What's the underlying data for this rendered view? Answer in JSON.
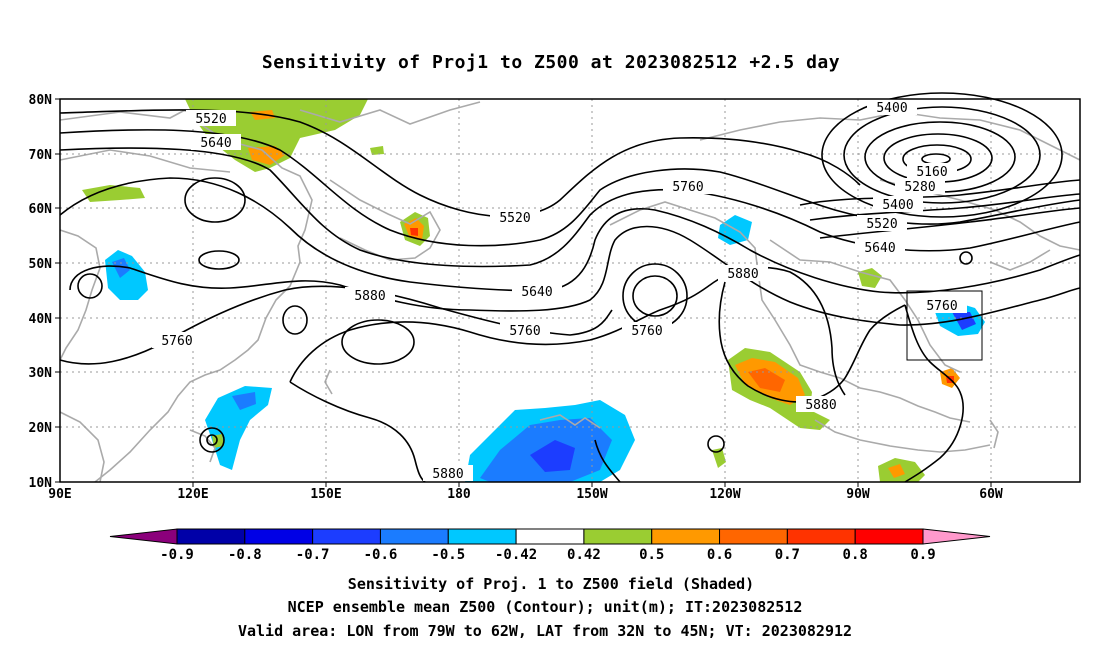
{
  "title": "Sensitivity of Proj1 to Z500 at 2023082512 +2.5 day",
  "map": {
    "lat_labels": [
      "80N",
      "70N",
      "60N",
      "50N",
      "40N",
      "30N",
      "20N",
      "10N"
    ],
    "lon_labels": [
      "90E",
      "120E",
      "150E",
      "180",
      "150W",
      "120W",
      "90W",
      "60W"
    ],
    "contour_labels": [
      {
        "text": "5520"
      },
      {
        "text": "5640"
      },
      {
        "text": "5520"
      },
      {
        "text": "5760"
      },
      {
        "text": "5400"
      },
      {
        "text": "5160"
      },
      {
        "text": "5280"
      },
      {
        "text": "5400"
      },
      {
        "text": "5520"
      },
      {
        "text": "5640"
      },
      {
        "text": "5880"
      },
      {
        "text": "5640"
      },
      {
        "text": "5760"
      },
      {
        "text": "5760"
      },
      {
        "text": "5880"
      },
      {
        "text": "5760"
      },
      {
        "text": "5760"
      },
      {
        "text": "5880"
      },
      {
        "text": "5880"
      }
    ],
    "valid_area": {
      "lon_min": -79,
      "lon_max": -62,
      "lat_min": 32,
      "lat_max": 45
    }
  },
  "colorbar": {
    "labels": [
      "-0.9",
      "-0.8",
      "-0.7",
      "-0.6",
      "-0.5",
      "-0.42",
      "0.42",
      "0.5",
      "0.6",
      "0.7",
      "0.8",
      "0.9"
    ],
    "colors": [
      "#8b007b",
      "#0000a8",
      "#0000e6",
      "#1c3dff",
      "#1b7cff",
      "#00c8ff",
      "#ffffff",
      "#9acd32",
      "#ff9900",
      "#ff6600",
      "#ff3300",
      "#ff0000",
      "#ff99cc"
    ]
  },
  "footer": {
    "line1": "Sensitivity of Proj. 1 to Z500 field (Shaded)",
    "line2": "NCEP ensemble mean Z500 (Contour); unit(m); IT:2023082512",
    "line3": "Valid area: LON from 79W to 62W, LAT from 32N to 45N; VT: 2023082912"
  }
}
